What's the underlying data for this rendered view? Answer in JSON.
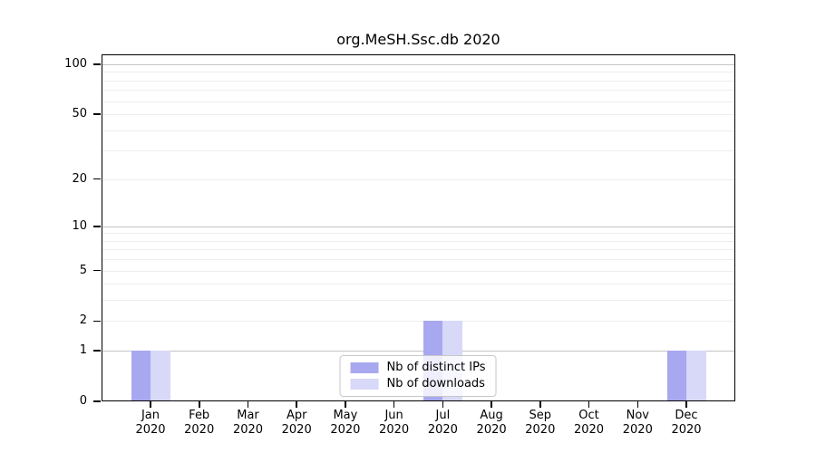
{
  "title": "org.MeSH.Ssc.db 2020",
  "chart_data": {
    "type": "bar",
    "title": "org.MeSH.Ssc.db 2020",
    "categories": [
      "Jan",
      "Feb",
      "Mar",
      "Apr",
      "May",
      "Jun",
      "Jul",
      "Aug",
      "Sep",
      "Oct",
      "Nov",
      "Dec"
    ],
    "x_year_label": "2020",
    "series": [
      {
        "name": "Nb of distinct IPs",
        "color": "#a8a8f0",
        "values": [
          1,
          0,
          0,
          0,
          0,
          0,
          2,
          0,
          0,
          0,
          0,
          1
        ]
      },
      {
        "name": "Nb of downloads",
        "color": "#d8d8f8",
        "values": [
          1,
          0,
          0,
          0,
          0,
          0,
          2,
          0,
          0,
          0,
          0,
          1
        ]
      }
    ],
    "y_scale": "log10(1+x)",
    "y_ticks": [
      0,
      1,
      2,
      5,
      10,
      20,
      50,
      100
    ],
    "y_minor_gridlines": [
      3,
      4,
      6,
      7,
      8,
      9,
      30,
      40,
      60,
      70,
      80,
      90
    ],
    "y_emphasis_gridlines": [
      1,
      10,
      100
    ],
    "ylim": [
      0,
      115
    ],
    "grid": true,
    "legend_position": "bottom-center"
  },
  "colors": {
    "background": "#ffffff",
    "axis": "#000000",
    "grid_emphasis": "#c4c4c4",
    "grid_minor": "#ededed",
    "legend_border": "#c8c8c8"
  }
}
